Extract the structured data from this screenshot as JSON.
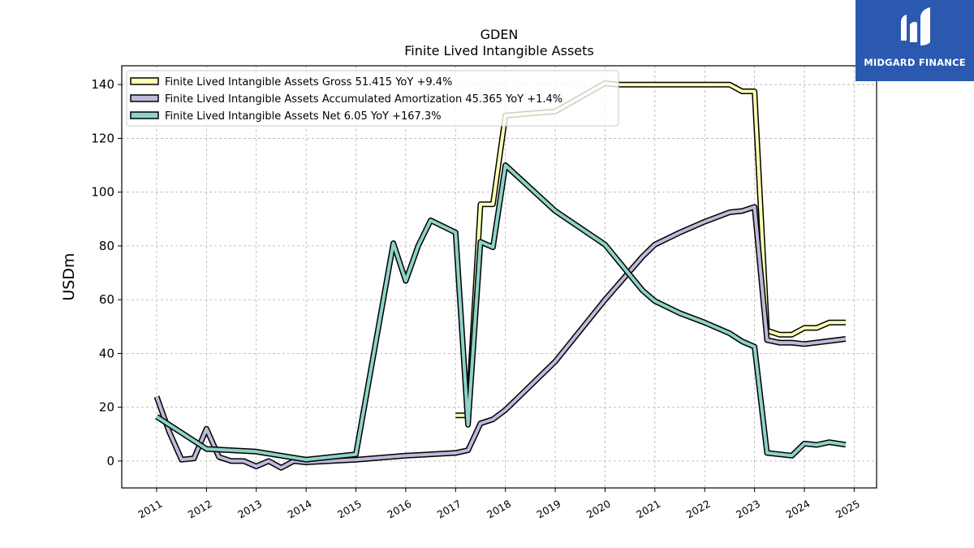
{
  "chart_data": {
    "type": "line",
    "title": "GDEN",
    "subtitle": "Finite Lived Intangible Assets",
    "ylabel": "USDm",
    "xlabel": "",
    "ylim": [
      -10,
      147
    ],
    "xlim": [
      2010.3,
      2025.45
    ],
    "yticks": [
      0,
      20,
      40,
      60,
      80,
      100,
      120,
      140
    ],
    "xticks": [
      "2011",
      "2012",
      "2013",
      "2014",
      "2015",
      "2016",
      "2017",
      "2018",
      "2019",
      "2020",
      "2021",
      "2022",
      "2023",
      "2024",
      "2025"
    ],
    "grid": true,
    "legend_position": "top-left",
    "series": [
      {
        "name": "Finite Lived Intangible Assets Gross  51.415 YoY +9.4%",
        "color": "#ffffb3",
        "points": [
          [
            2017.0,
            17.0
          ],
          [
            2017.25,
            17.0
          ],
          [
            2017.5,
            95.5
          ],
          [
            2017.75,
            95.5
          ],
          [
            2018.0,
            128.5
          ],
          [
            2019.0,
            130.0
          ],
          [
            2020.0,
            140.5
          ],
          [
            2020.25,
            140.0
          ],
          [
            2021.0,
            140.0
          ],
          [
            2022.0,
            140.0
          ],
          [
            2022.5,
            140.0
          ],
          [
            2022.75,
            137.5
          ],
          [
            2023.0,
            137.5
          ],
          [
            2023.25,
            48.5
          ],
          [
            2023.5,
            47.0
          ],
          [
            2023.75,
            47.0
          ],
          [
            2024.0,
            49.5
          ],
          [
            2024.25,
            49.5
          ],
          [
            2024.5,
            51.5
          ],
          [
            2024.83,
            51.5
          ]
        ]
      },
      {
        "name": "Finite Lived Intangible Assets Accumulated Amortization  45.365 YoY +1.4%",
        "color": "#bebada",
        "points": [
          [
            2011.0,
            24.0
          ],
          [
            2011.25,
            11.0
          ],
          [
            2011.5,
            0.5
          ],
          [
            2011.75,
            1.0
          ],
          [
            2012.0,
            12.0
          ],
          [
            2012.25,
            1.5
          ],
          [
            2012.5,
            0.0
          ],
          [
            2012.75,
            0.0
          ],
          [
            2013.0,
            -2.0
          ],
          [
            2013.25,
            0.0
          ],
          [
            2013.5,
            -2.5
          ],
          [
            2013.75,
            0.0
          ],
          [
            2014.0,
            -0.5
          ],
          [
            2015.0,
            0.5
          ],
          [
            2016.0,
            2.0
          ],
          [
            2017.0,
            3.0
          ],
          [
            2017.25,
            4.0
          ],
          [
            2017.5,
            14.0
          ],
          [
            2017.75,
            15.5
          ],
          [
            2018.0,
            19.0
          ],
          [
            2019.0,
            37.0
          ],
          [
            2020.0,
            60.0
          ],
          [
            2020.75,
            76.0
          ],
          [
            2021.0,
            80.5
          ],
          [
            2021.5,
            85.0
          ],
          [
            2022.0,
            89.0
          ],
          [
            2022.5,
            92.5
          ],
          [
            2022.75,
            93.0
          ],
          [
            2023.0,
            94.5
          ],
          [
            2023.25,
            45.0
          ],
          [
            2023.5,
            44.0
          ],
          [
            2023.75,
            44.0
          ],
          [
            2024.0,
            43.5
          ],
          [
            2024.83,
            45.4
          ]
        ]
      },
      {
        "name": "Finite Lived Intangible Assets Net  6.05 YoY +167.3%",
        "color": "#8dd3c7",
        "points": [
          [
            2011.0,
            16.5
          ],
          [
            2011.5,
            10.5
          ],
          [
            2012.0,
            4.5
          ],
          [
            2013.0,
            3.5
          ],
          [
            2014.0,
            0.5
          ],
          [
            2015.0,
            2.5
          ],
          [
            2015.75,
            81.0
          ],
          [
            2016.0,
            67.0
          ],
          [
            2016.25,
            80.0
          ],
          [
            2016.5,
            89.5
          ],
          [
            2017.0,
            85.0
          ],
          [
            2017.25,
            13.5
          ],
          [
            2017.5,
            81.5
          ],
          [
            2017.75,
            79.5
          ],
          [
            2018.0,
            110.0
          ],
          [
            2019.0,
            93.0
          ],
          [
            2020.0,
            80.5
          ],
          [
            2020.75,
            63.5
          ],
          [
            2021.0,
            59.5
          ],
          [
            2021.5,
            55.0
          ],
          [
            2022.0,
            51.5
          ],
          [
            2022.5,
            47.5
          ],
          [
            2022.75,
            44.5
          ],
          [
            2023.0,
            42.5
          ],
          [
            2023.25,
            3.0
          ],
          [
            2023.75,
            2.0
          ],
          [
            2024.0,
            6.5
          ],
          [
            2024.25,
            6.0
          ],
          [
            2024.5,
            7.0
          ],
          [
            2024.83,
            6.05
          ]
        ]
      }
    ]
  },
  "logo": {
    "name": "MIDGARD FINANCE",
    "icon": "midgard-m-icon",
    "color": "#2b59b0"
  }
}
